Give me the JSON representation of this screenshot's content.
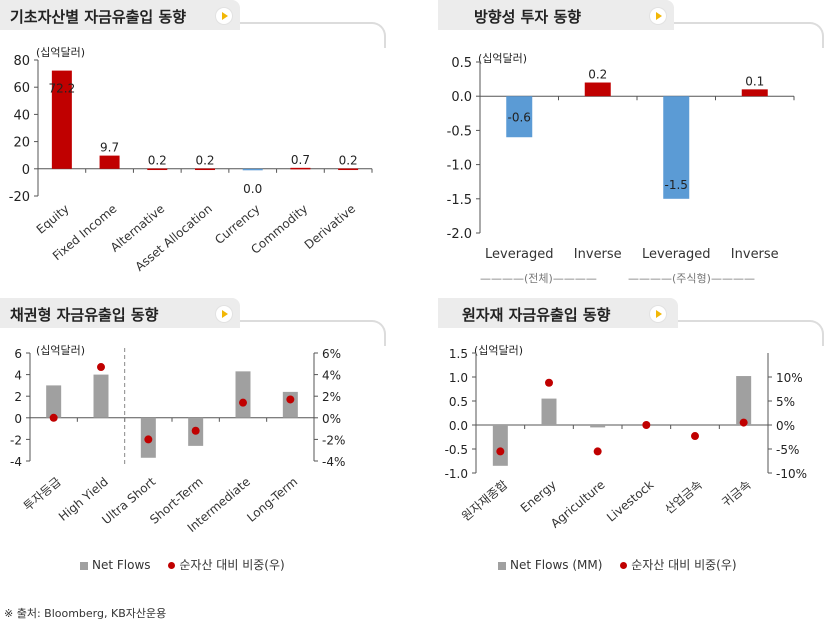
{
  "footnote": "※ 출처: Bloomberg, KB자산운용",
  "colors": {
    "red": "#c00000",
    "blue": "#5b9bd5",
    "gray": "#a0a0a0",
    "axis": "#555555"
  },
  "chart_data": [
    {
      "id": "asset_class",
      "type": "bar",
      "title": "기초자산별 자금유출입 동향",
      "unit_label": "(십억달러)",
      "categories": [
        "Equity",
        "Fixed Income",
        "Alternative",
        "Asset Allocation",
        "Currency",
        "Commodity",
        "Derivative"
      ],
      "values": [
        72.2,
        9.7,
        0.2,
        0.2,
        0.0,
        0.7,
        0.2
      ],
      "data_labels": [
        "72.2",
        "9.7",
        "0.2",
        "0.2",
        "0.0",
        "0.7",
        "0.2"
      ],
      "bar_colors": [
        "#c00000",
        "#c00000",
        "#c00000",
        "#c00000",
        "#5b9bd5",
        "#c00000",
        "#c00000"
      ],
      "ylim": [
        -20,
        80
      ],
      "yticks": [
        -20,
        0,
        20,
        40,
        60,
        80
      ],
      "ytick_labels": [
        "-20",
        "0",
        "20",
        "40",
        "60",
        "80"
      ]
    },
    {
      "id": "directional",
      "type": "bar",
      "title": "방향성 투자 동향",
      "unit_label": "(십억달러)",
      "categories": [
        "Leveraged",
        "Inverse",
        "Leveraged",
        "Inverse"
      ],
      "values": [
        -0.6,
        0.2,
        -1.5,
        0.1
      ],
      "data_labels": [
        "-0.6",
        "0.2",
        "-1.5",
        "0.1"
      ],
      "bar_colors": [
        "#5b9bd5",
        "#c00000",
        "#5b9bd5",
        "#c00000"
      ],
      "groups": [
        "(전체)",
        "(주식형)"
      ],
      "ylim": [
        -2.0,
        0.5
      ],
      "yticks": [
        -2.0,
        -1.5,
        -1.0,
        -0.5,
        0.0,
        0.5
      ],
      "ytick_labels": [
        "-2.0",
        "-1.5",
        "-1.0",
        "-0.5",
        "0.0",
        "0.5"
      ]
    },
    {
      "id": "bond",
      "type": "bar",
      "title": "채권형 자금유출입 동향",
      "unit_label": "(십억달러)",
      "categories": [
        "투자등급",
        "High Yield",
        "Ultra Short",
        "Short-Term",
        "Intermediate",
        "Long-Term"
      ],
      "series": [
        {
          "name": "Net Flows",
          "axis": "left",
          "values": [
            3.0,
            4.0,
            -3.7,
            -2.6,
            4.3,
            2.4
          ]
        },
        {
          "name": "순자산  대비 비중(우)",
          "axis": "right",
          "values": [
            0.0,
            4.7,
            -2.0,
            -1.2,
            1.4,
            1.7
          ]
        }
      ],
      "ylim": [
        -4,
        6
      ],
      "yticks": [
        -4,
        -2,
        0,
        2,
        4,
        6
      ],
      "ytick_labels": [
        "-4",
        "-2",
        "0",
        "2",
        "4",
        "6"
      ],
      "y2lim": [
        -4,
        6
      ],
      "y2ticks": [
        -4,
        -2,
        0,
        2,
        4,
        6
      ],
      "y2tick_labels": [
        "-4%",
        "-2%",
        "0%",
        "2%",
        "4%",
        "6%"
      ]
    },
    {
      "id": "commodity",
      "type": "bar",
      "title": "원자재 자금유출입 동향",
      "unit_label": "(십억달러)",
      "categories": [
        "원자재종합",
        "Energy",
        "Agriculture",
        "Livestock",
        "산업금속",
        "귀금속"
      ],
      "series": [
        {
          "name": "Net Flows (MM)",
          "axis": "left",
          "values": [
            -0.85,
            0.55,
            -0.05,
            0.0,
            0.0,
            1.02
          ]
        },
        {
          "name": "순자산  대비 비중(우)",
          "axis": "right",
          "values": [
            -5.5,
            8.8,
            -5.5,
            0.0,
            -2.3,
            0.5
          ]
        }
      ],
      "ylim": [
        -1.0,
        1.5
      ],
      "yticks": [
        -1.0,
        -0.5,
        0.0,
        0.5,
        1.0,
        1.5
      ],
      "ytick_labels": [
        "-1.0",
        "-0.5",
        "0.0",
        "0.5",
        "1.0",
        "1.5"
      ],
      "y2lim": [
        -10,
        15
      ],
      "y2ticks": [
        -10,
        -5,
        0,
        5,
        10
      ],
      "y2tick_labels": [
        "-10%",
        "-5%",
        "0%",
        "5%",
        "10%"
      ]
    }
  ]
}
